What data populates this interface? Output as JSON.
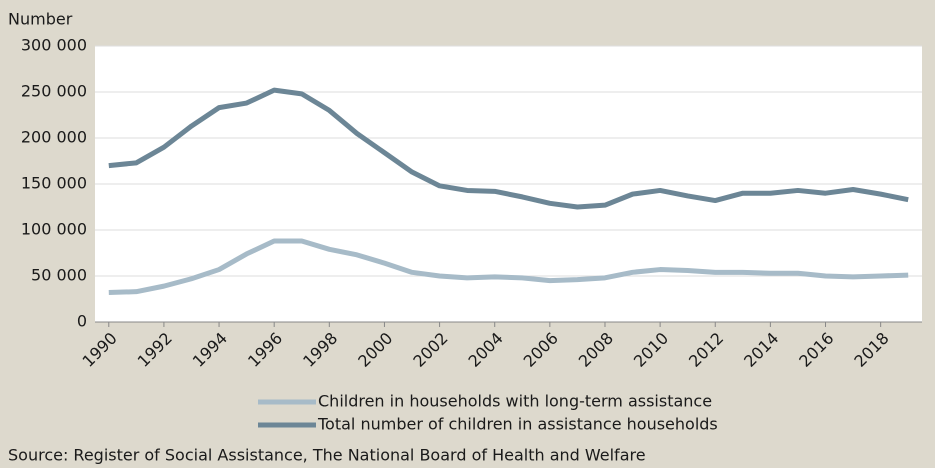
{
  "chart_data": {
    "type": "line",
    "y_label": "Number",
    "source": "Source: Register of Social Assistance, The National Board of Health and Welfare",
    "x": [
      1990,
      1991,
      1992,
      1993,
      1994,
      1995,
      1996,
      1997,
      1998,
      1999,
      2000,
      2001,
      2002,
      2003,
      2004,
      2005,
      2006,
      2007,
      2008,
      2009,
      2010,
      2011,
      2012,
      2013,
      2014,
      2015,
      2016,
      2017,
      2018,
      2019
    ],
    "xlim": [
      1989.5,
      2019.5
    ],
    "xticks": [
      1990,
      1992,
      1994,
      1996,
      1998,
      2000,
      2002,
      2004,
      2006,
      2008,
      2010,
      2012,
      2014,
      2016,
      2018
    ],
    "ylim": [
      0,
      300000
    ],
    "yticks": [
      {
        "value": 0,
        "label": "0"
      },
      {
        "value": 50000,
        "label": "50 000"
      },
      {
        "value": 100000,
        "label": "100 000"
      },
      {
        "value": 150000,
        "label": "150 000"
      },
      {
        "value": 200000,
        "label": "200 000"
      },
      {
        "value": 250000,
        "label": "250 000"
      },
      {
        "value": 300000,
        "label": "300 000"
      }
    ],
    "grid": true,
    "series": [
      {
        "name": "Children in households with long-term assistance",
        "color": "#a7bbc8",
        "values": [
          32000,
          33000,
          39000,
          47000,
          57000,
          74000,
          88000,
          88000,
          79000,
          73000,
          64000,
          54000,
          50000,
          48000,
          49000,
          48000,
          45000,
          46000,
          48000,
          54000,
          57000,
          56000,
          54000,
          54000,
          53000,
          53000,
          50000,
          49000,
          50000,
          51000
        ]
      },
      {
        "name": "Total number of children in assistance households",
        "color": "#6c8696",
        "values": [
          170000,
          173000,
          190000,
          213000,
          233000,
          238000,
          252000,
          248000,
          230000,
          205000,
          184000,
          163000,
          148000,
          143000,
          142000,
          136000,
          129000,
          125000,
          127000,
          139000,
          143000,
          137000,
          132000,
          140000,
          140000,
          143000,
          140000,
          144000,
          139000,
          133000
        ]
      }
    ]
  }
}
